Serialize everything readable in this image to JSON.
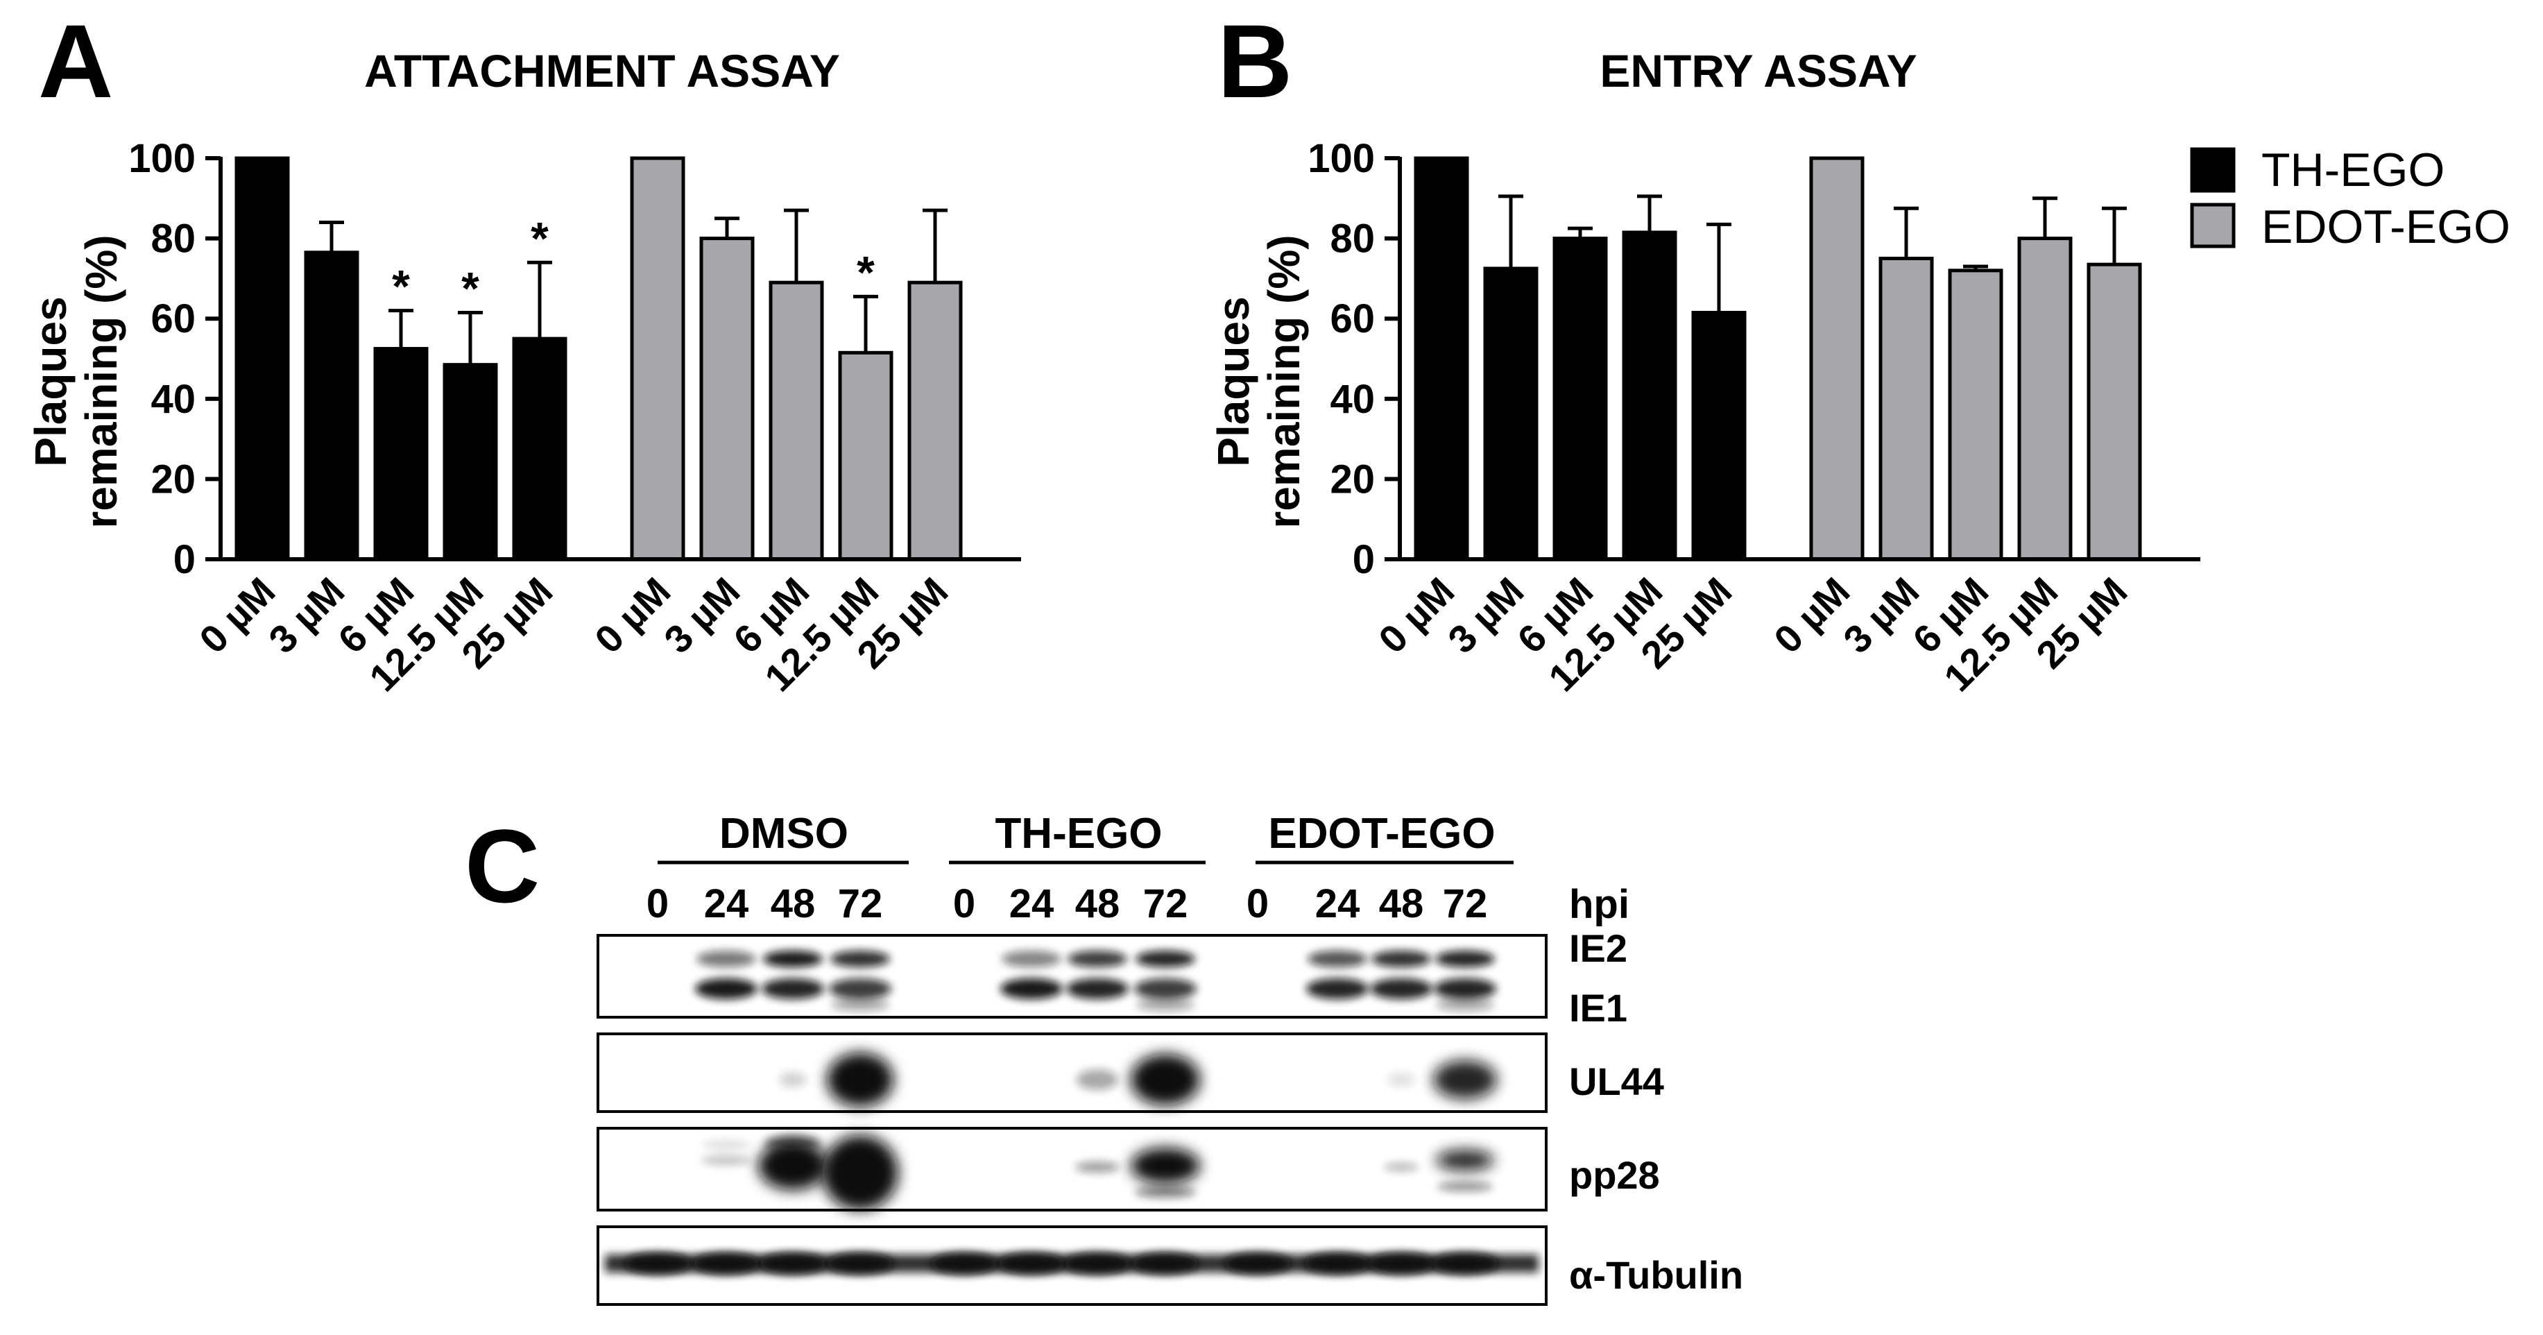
{
  "panels": {
    "a": {
      "letter": "A",
      "title": "ATTACHMENT ASSAY"
    },
    "b": {
      "letter": "B",
      "title": "ENTRY ASSAY"
    },
    "c": {
      "letter": "C"
    }
  },
  "colors": {
    "th": "#000000",
    "edot": "#a7a7ab",
    "axis": "#000000"
  },
  "legend": {
    "items": [
      "TH-EGO",
      "EDOT-EGO"
    ]
  },
  "chart_data": [
    {
      "type": "bar",
      "title": "ATTACHMENT ASSAY",
      "ylabel_lines": [
        "Plaques",
        "remaining (%)"
      ],
      "ylim": [
        0,
        100
      ],
      "yticks": [
        "0",
        "20",
        "40",
        "60",
        "80",
        "100"
      ],
      "categories": [
        "0 µM",
        "3 µM",
        "6 µM",
        "12.5 µM",
        "25 µM"
      ],
      "series": [
        {
          "name": "TH-EGO",
          "color": "#000000",
          "values": [
            100,
            76.5,
            52.5,
            48.5,
            55
          ],
          "errors": [
            0,
            7.5,
            9.5,
            13,
            19
          ],
          "significant": [
            false,
            false,
            true,
            true,
            true
          ]
        },
        {
          "name": "EDOT-EGO",
          "color": "#a7a7ab",
          "values": [
            100,
            80,
            69,
            51.5,
            69
          ],
          "errors": [
            0,
            5,
            18,
            14,
            18
          ],
          "significant": [
            false,
            false,
            false,
            true,
            false
          ]
        }
      ],
      "significance_marker": "*",
      "grid": false
    },
    {
      "type": "bar",
      "title": "ENTRY ASSAY",
      "ylabel_lines": [
        "Plaques",
        "remaining (%)"
      ],
      "ylim": [
        0,
        100
      ],
      "yticks": [
        "0",
        "20",
        "40",
        "60",
        "80",
        "100"
      ],
      "categories": [
        "0 µM",
        "3 µM",
        "6 µM",
        "12.5 µM",
        "25 µM"
      ],
      "series": [
        {
          "name": "TH-EGO",
          "color": "#000000",
          "values": [
            100,
            72.5,
            80,
            81.5,
            61.5
          ],
          "errors": [
            0,
            18,
            2.5,
            9,
            22
          ],
          "significant": [
            false,
            false,
            false,
            false,
            false
          ]
        },
        {
          "name": "EDOT-EGO",
          "color": "#a7a7ab",
          "values": [
            100,
            75,
            72,
            80,
            73.5
          ],
          "errors": [
            0,
            12.5,
            1,
            10,
            14
          ],
          "significant": [
            false,
            false,
            false,
            false,
            false
          ]
        }
      ],
      "legend_position": "right",
      "grid": false
    }
  ],
  "blot": {
    "groups": [
      "DMSO",
      "TH-EGO",
      "EDOT-EGO"
    ],
    "timepoints": [
      "0",
      "24",
      "48",
      "72"
    ],
    "time_unit": "hpi",
    "rows": [
      {
        "labels": [
          "IE2",
          "IE1"
        ]
      },
      {
        "labels": [
          "UL44"
        ]
      },
      {
        "labels": [
          "pp28"
        ]
      },
      {
        "labels": [
          "α-Tubulin"
        ]
      }
    ]
  }
}
